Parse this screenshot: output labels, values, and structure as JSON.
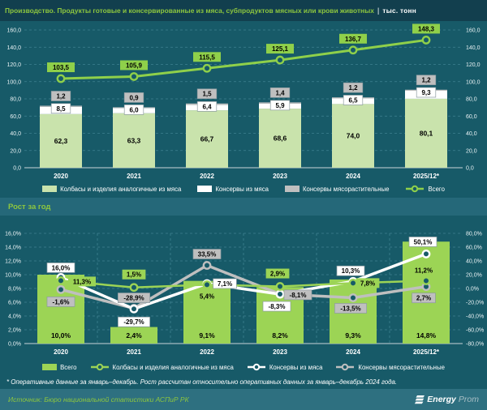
{
  "header": {
    "title": "Производство. Продукты готовые и консервированные из мяса, субпродуктов мясных или крови животных",
    "divider": "|",
    "units": "тыс. тонн"
  },
  "growth_title": "Рост за год",
  "footnote": "* Оперативные данные за январь–декабрь. Рост рассчитан относительно оперативных данных за январь–декабрь 2024 года.",
  "footer": {
    "source": "Источник: Бюро национальной статистики АСПиР РК",
    "logo_bold": "Energy",
    "logo_light": "Prom"
  },
  "colors": {
    "background": "#175A68",
    "title_bar": "#123F4E",
    "band": "#256879",
    "footer": "#2E7080",
    "accent_green": "#8DC63F",
    "total_line_green": "#8FD04A",
    "bar_pale_green": "#C9E3AC",
    "growth_green": "#9CD455",
    "white": "#FFFFFF",
    "gray": "#BFBFBF",
    "grid": "#4F93A3"
  },
  "chart_data": [
    {
      "type": "bar",
      "subtype": "stacked-bars-with-total-line",
      "title": "Производство, тыс. тонн",
      "categories": [
        "2020",
        "2021",
        "2022",
        "2023",
        "2024",
        "2025/12*"
      ],
      "stacked_series": [
        {
          "name": "Колбасы и изделия аналогичные из мяса",
          "color": "#C9E3AC",
          "values": [
            62.3,
            63.3,
            66.7,
            68.6,
            74.0,
            80.1
          ]
        },
        {
          "name": "Консервы из мяса",
          "color": "#FFFFFF",
          "values": [
            8.5,
            6.0,
            6.4,
            5.9,
            6.5,
            9.3
          ]
        },
        {
          "name": "Консервы мясорастительные",
          "color": "#BFBFBF",
          "values": [
            1.2,
            0.9,
            1.5,
            1.4,
            1.2,
            1.2
          ]
        }
      ],
      "line_series": [
        {
          "name": "Всего",
          "color": "#8FD04A",
          "values": [
            103.5,
            105.9,
            115.5,
            125.1,
            136.7,
            148.3
          ]
        }
      ],
      "ylim": [
        0,
        160
      ],
      "ytick_step": 20,
      "grid": true,
      "legend_position": "bottom"
    },
    {
      "type": "bar",
      "subtype": "bars-with-lines-dual-axis",
      "title": "Рост за год",
      "categories": [
        "2020",
        "2021",
        "2022",
        "2023",
        "2024",
        "2025/12*"
      ],
      "bar_series": [
        {
          "name": "Всего",
          "axis": "left",
          "color": "#9CD455",
          "values": [
            10.0,
            2.4,
            9.1,
            8.2,
            9.3,
            14.8
          ]
        }
      ],
      "line_series": [
        {
          "name": "Колбасы и изделия аналогичные из мяса",
          "axis": "right",
          "color": "#9CD455",
          "values": [
            11.3,
            1.5,
            5.4,
            2.9,
            7.8,
            11.2
          ]
        },
        {
          "name": "Консервы из мяса",
          "axis": "right",
          "color": "#FFFFFF",
          "values": [
            16.0,
            -29.7,
            7.1,
            -8.3,
            10.3,
            50.1
          ]
        },
        {
          "name": "Консервы мясорастительные",
          "axis": "right",
          "color": "#BFBFBF",
          "values": [
            -1.6,
            -28.9,
            33.5,
            -8.1,
            -13.5,
            2.7
          ]
        }
      ],
      "left_ylim": [
        0,
        16
      ],
      "left_ytick_step": 2,
      "right_ylim": [
        -80,
        80
      ],
      "right_ytick_step": 20,
      "units": "%",
      "grid": true,
      "legend_position": "bottom"
    }
  ]
}
